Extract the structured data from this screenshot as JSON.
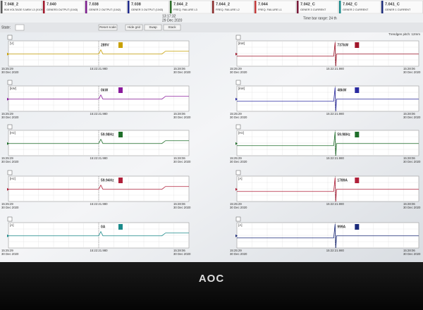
{
  "header": {
    "tabs": [
      {
        "code": "7.048_2",
        "label": "B08 VOLTAGE S-MBV L3 (X1098)"
      },
      {
        "code": "7.040",
        "label": "GENER3 OUTPUT (1043)"
      },
      {
        "code": "7.038",
        "label": "GENER 2 OUTPUT (1042)"
      },
      {
        "code": "7.038",
        "label": "GENER 3 OUTPUT (1043)"
      },
      {
        "code": "7.044_2",
        "label": "FREQ. FAILURE L3"
      },
      {
        "code": "7.044_2",
        "label": "FREQ. FAILURE L2"
      },
      {
        "code": "7.044",
        "label": "FREQ. FAILURE L1"
      },
      {
        "code": "7.042_C",
        "label": "GENER 3 CURRENT"
      },
      {
        "code": "7.042_C",
        "label": "GENER 2 CURRENT"
      },
      {
        "code": "7.041_C",
        "label": "GENER 1 CURRENT"
      }
    ],
    "time": "13:17:32",
    "date": "29 Dec 2020",
    "range": "Time bar range: 24 th"
  },
  "toolbar": {
    "state": "State:",
    "reset": "Reset scale",
    "hide": "Hide grid",
    "swap": "Swap",
    "stack": "Stack",
    "pitch": "Trendgen pitch: 12mm"
  },
  "panels": [
    {
      "unit": "[V]",
      "value": "289V",
      "t0": "15:25:29",
      "d0": "30 Dec 2020",
      "cursor": "15:22:21.980",
      "t1": "15:28:06",
      "d1": "30 Dec 2020"
    },
    {
      "unit": "[kW]",
      "value": "0kW",
      "t0": "15:25:29",
      "d0": "30 Dec 2020",
      "cursor": "15:22:21.980",
      "t1": "15:28:06",
      "d1": "30 Dec 2020"
    },
    {
      "unit": "[Hz]",
      "value": "59.98Hz",
      "t0": "15:25:29",
      "d0": "30 Dec 2020",
      "cursor": "15:22:21.980",
      "t1": "15:28:06",
      "d1": "30 Dec 2020"
    },
    {
      "unit": "[Hz]",
      "value": "59.94Hz",
      "t0": "15:25:29",
      "d0": "30 Dec 2020",
      "cursor": "15:22:21.980",
      "t1": "15:28:06",
      "d1": "30 Dec 2020"
    },
    {
      "unit": "[A]",
      "value": "0A",
      "t0": "15:25:29",
      "d0": "30 Dec 2020",
      "cursor": "15:22:21.980",
      "t1": "15:28:06",
      "d1": "30 Dec 2020"
    },
    {
      "unit": "[kW]",
      "value": "737kW",
      "t0": "15:25:29",
      "d0": "30 Dec 2020",
      "cursor": "15:22:21.980",
      "t1": "15:28:06",
      "d1": "30 Dec 2020"
    },
    {
      "unit": "[kW]",
      "value": "48kW",
      "t0": "15:25:29",
      "d0": "30 Dec 2020",
      "cursor": "15:22:21.980",
      "t1": "15:28:06",
      "d1": "30 Dec 2020"
    },
    {
      "unit": "[Hz]",
      "value": "59.98Hz",
      "t0": "15:25:29",
      "d0": "30 Dec 2020",
      "cursor": "15:22:21.980",
      "t1": "15:28:06",
      "d1": "30 Dec 2020"
    },
    {
      "unit": "[A]",
      "value": "1789A",
      "t0": "15:25:29",
      "d0": "30 Dec 2020",
      "cursor": "15:22:21.980",
      "t1": "15:28:06",
      "d1": "30 Dec 2020"
    },
    {
      "unit": "[A]",
      "value": "999A",
      "t0": "15:25:29",
      "d0": "30 Dec 2020",
      "cursor": "15:22:21.980",
      "t1": "15:28:06",
      "d1": "30 Dec 2020"
    }
  ],
  "bezel": {
    "brand": "AOC"
  }
}
